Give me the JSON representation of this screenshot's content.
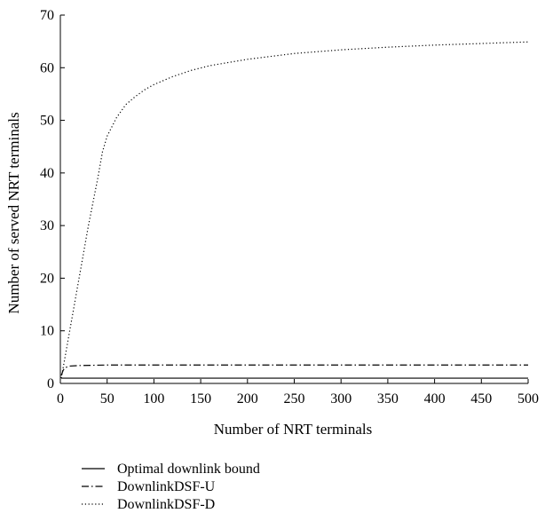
{
  "chart_data": {
    "type": "line",
    "title": "",
    "xlabel": "Number of NRT terminals",
    "ylabel": "Number of served NRT terminals",
    "xlim": [
      0,
      500
    ],
    "ylim": [
      0,
      70
    ],
    "xticks": [
      0,
      50,
      100,
      150,
      200,
      250,
      300,
      350,
      400,
      450,
      500
    ],
    "yticks": [
      0,
      10,
      20,
      30,
      40,
      50,
      60,
      70
    ],
    "grid": false,
    "legend_position": "bottom-left",
    "series": [
      {
        "name": "Optimal downlink bound",
        "style": "solid",
        "color": "#000000",
        "x": [
          1,
          500
        ],
        "y": [
          1,
          1
        ]
      },
      {
        "name": "DownlinkDSF-U",
        "style": "dash-dot",
        "color": "#000000",
        "x": [
          1,
          3,
          5,
          10,
          20,
          50,
          100,
          200,
          300,
          400,
          500
        ],
        "y": [
          1.5,
          2.5,
          3.0,
          3.3,
          3.4,
          3.5,
          3.5,
          3.5,
          3.5,
          3.5,
          3.5
        ]
      },
      {
        "name": "DownlinkDSF-D",
        "style": "dotted",
        "color": "#000000",
        "x": [
          1,
          5,
          10,
          20,
          30,
          40,
          45,
          50,
          60,
          70,
          80,
          90,
          100,
          120,
          140,
          160,
          180,
          200,
          250,
          300,
          350,
          400,
          450,
          500
        ],
        "y": [
          1,
          5,
          10,
          20,
          30,
          39,
          44,
          47,
          50.5,
          53,
          54.5,
          55.8,
          56.8,
          58.3,
          59.5,
          60.4,
          61.0,
          61.6,
          62.7,
          63.4,
          63.9,
          64.3,
          64.6,
          64.9
        ]
      }
    ]
  }
}
